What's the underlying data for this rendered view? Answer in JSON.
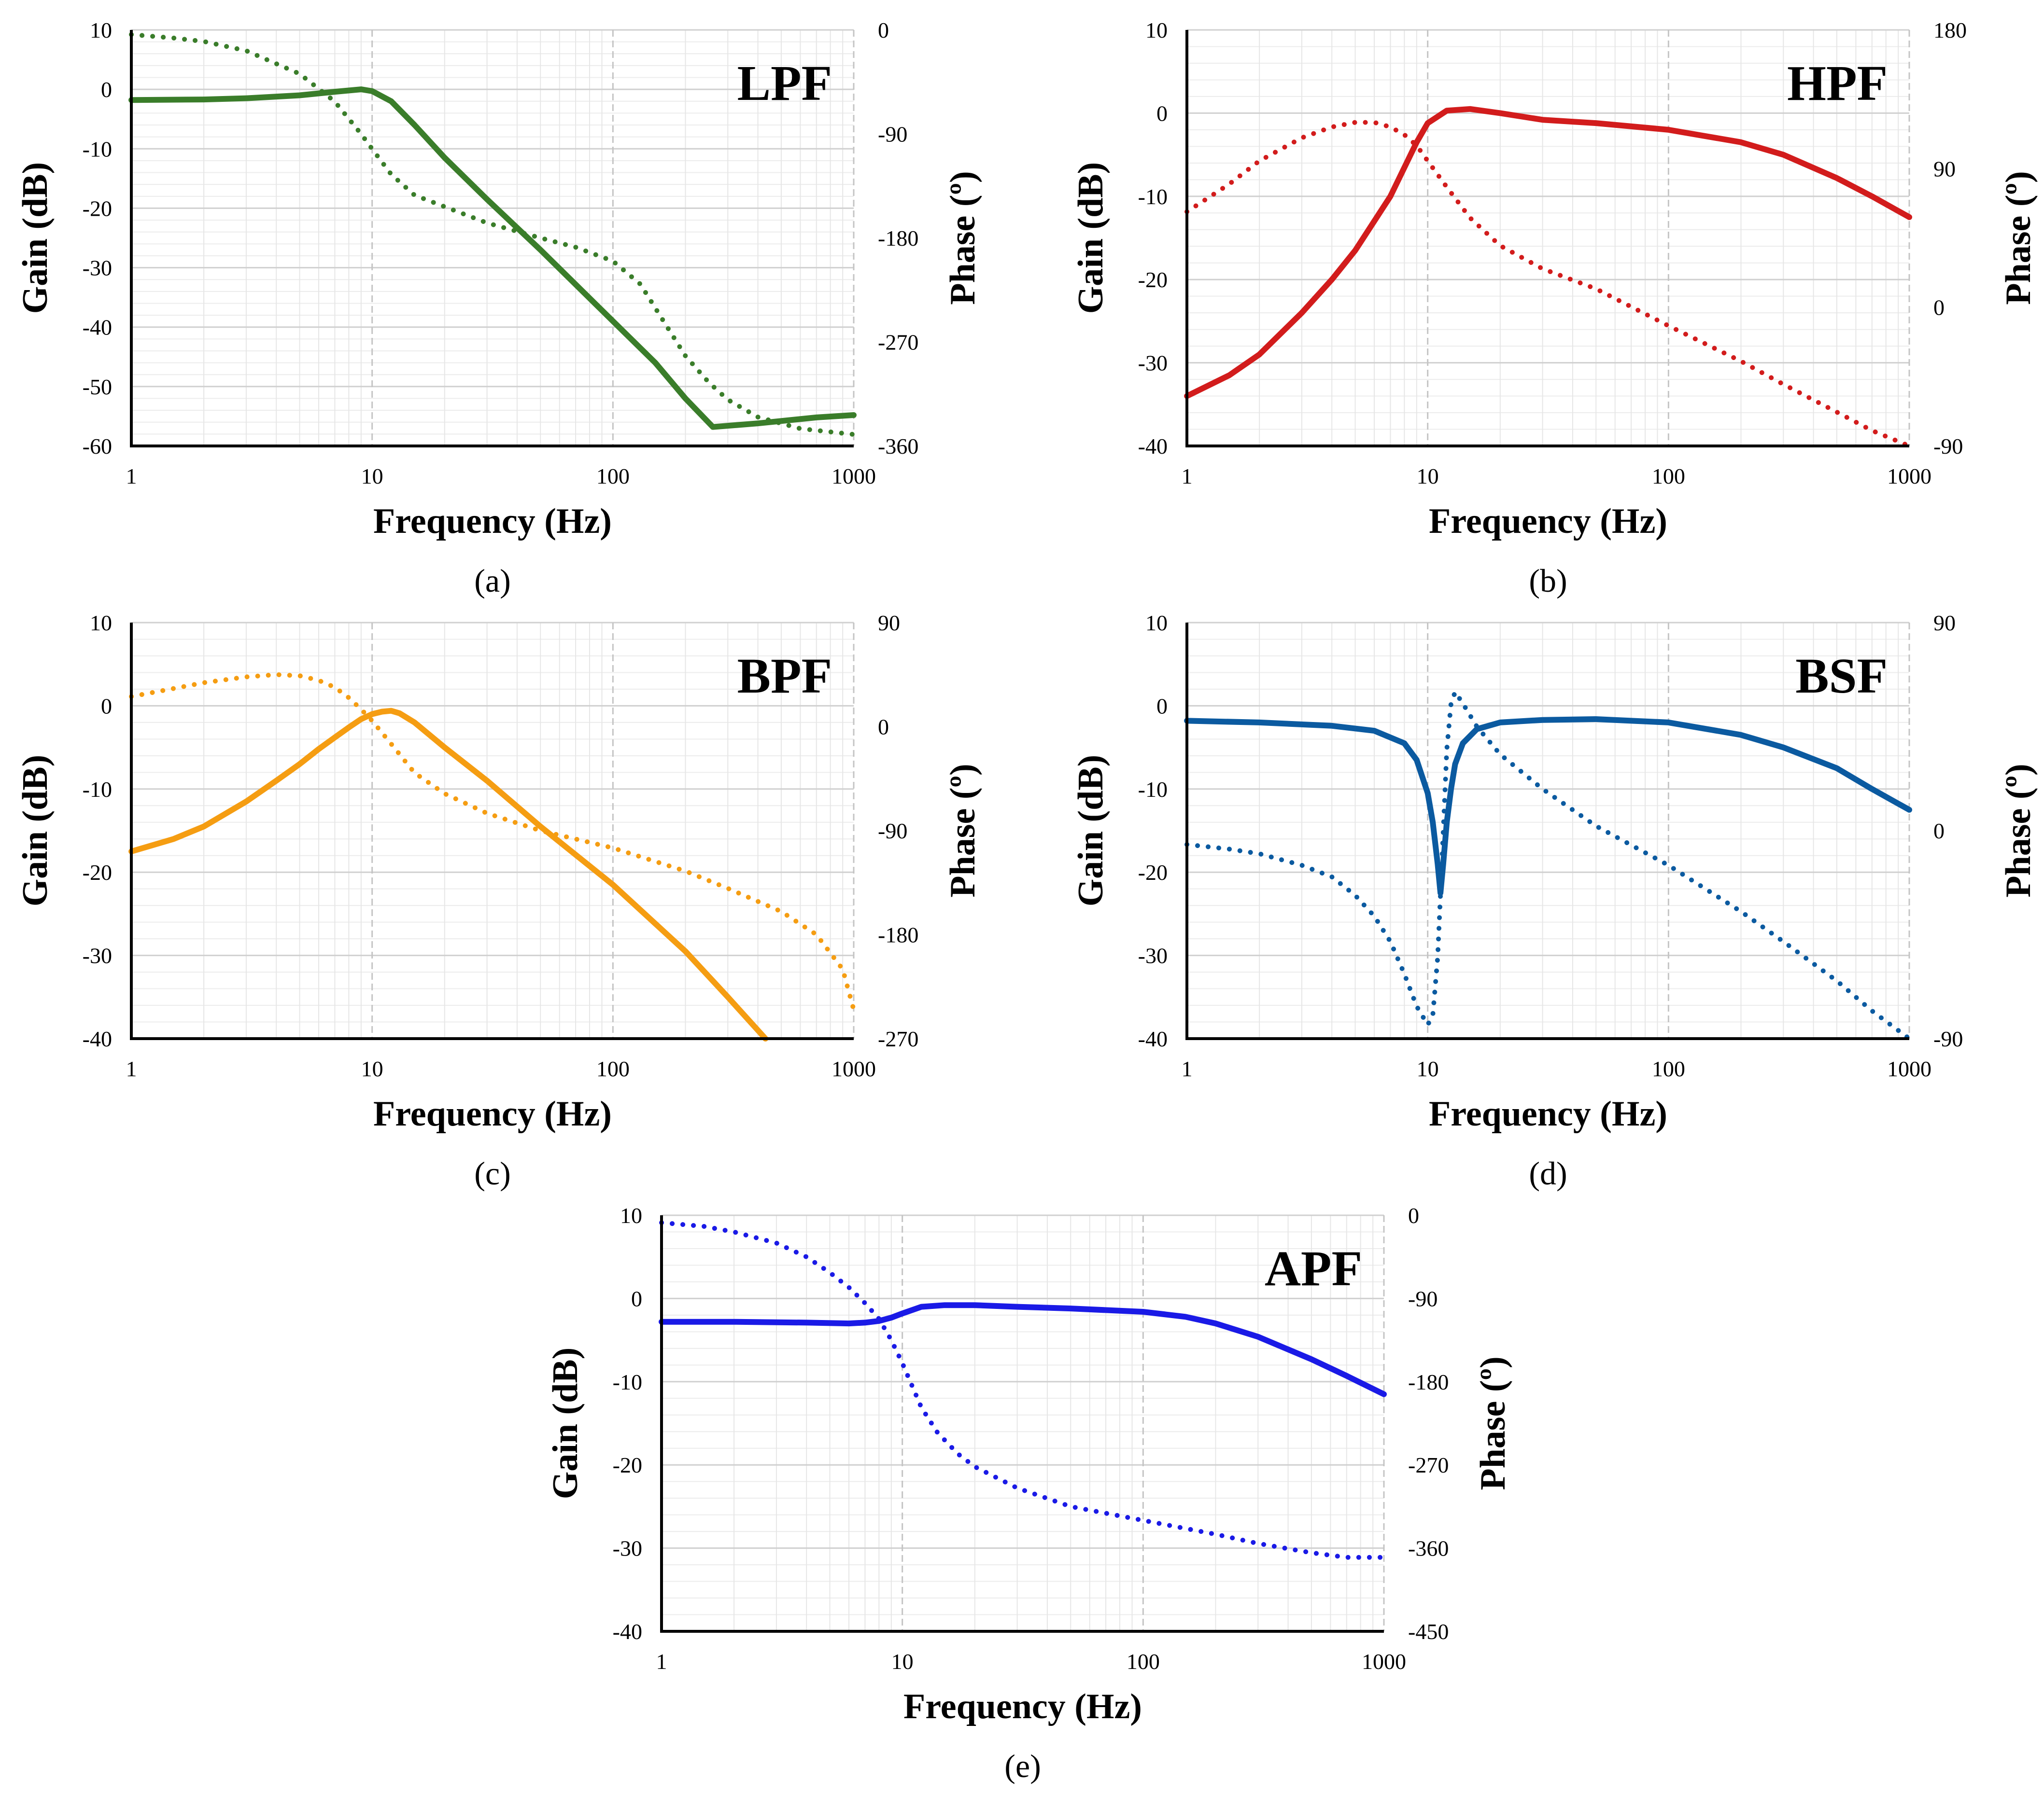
{
  "chart_data": [
    {
      "type": "line",
      "panel_label": "(a)",
      "filter_label": "LPF",
      "color": "#3a7d2a",
      "xlabel": "Frequency (Hz)",
      "ylabel": "Gain (dB)",
      "y2label": "Phase (º)",
      "xscale": "log",
      "xlim": [
        1,
        1000
      ],
      "ylim": [
        -60,
        10
      ],
      "y2lim": [
        -360,
        0
      ],
      "xticks": [
        1,
        10,
        100,
        1000
      ],
      "xtick_labels": [
        "1",
        "10",
        "100",
        "1000"
      ],
      "yticks": [
        10,
        0,
        -10,
        -20,
        -30,
        -40,
        -50,
        -60
      ],
      "ytick_labels": [
        "10",
        "0",
        "-10",
        "-20",
        "-30",
        "-40",
        "-50",
        "-60"
      ],
      "y2ticks": [
        0,
        -90,
        -180,
        -270,
        -360
      ],
      "y2tick_labels": [
        "0",
        "-90",
        "-180",
        "-270",
        "-360"
      ],
      "grid": true,
      "series": [
        {
          "name": "Gain",
          "axis": "left",
          "style": "solid",
          "x": [
            1,
            2,
            3,
            5,
            7,
            9,
            10,
            12,
            15,
            20,
            30,
            50,
            100,
            150,
            200,
            260,
            400,
            700,
            1000
          ],
          "y": [
            -1.8,
            -1.7,
            -1.5,
            -1,
            -0.4,
            0,
            -0.3,
            -2,
            -6,
            -11.5,
            -18.5,
            -27,
            -39,
            -46,
            -52,
            -56.8,
            -56.2,
            -55.2,
            -54.8
          ]
        },
        {
          "name": "Phase",
          "axis": "right",
          "style": "dotted",
          "x": [
            1,
            1.5,
            2,
            3,
            5,
            7,
            9,
            10,
            12,
            15,
            20,
            30,
            50,
            70,
            100,
            130,
            160,
            200,
            250,
            300,
            400,
            600,
            1000
          ],
          "y": [
            -4,
            -7,
            -10,
            -18,
            -38,
            -62,
            -90,
            -103,
            -125,
            -143,
            -153,
            -167,
            -180,
            -188,
            -200,
            -220,
            -250,
            -282,
            -305,
            -320,
            -335,
            -345,
            -350
          ]
        }
      ]
    },
    {
      "type": "line",
      "panel_label": "(b)",
      "filter_label": "HPF",
      "color": "#d21c1c",
      "xlabel": "Frequency (Hz)",
      "ylabel": "Gain (dB)",
      "y2label": "Phase (º)",
      "xscale": "log",
      "xlim": [
        1,
        1000
      ],
      "ylim": [
        -40,
        10
      ],
      "y2lim": [
        -90,
        180
      ],
      "xticks": [
        1,
        10,
        100,
        1000
      ],
      "xtick_labels": [
        "1",
        "10",
        "100",
        "1000"
      ],
      "yticks": [
        10,
        0,
        -10,
        -20,
        -30,
        -40
      ],
      "ytick_labels": [
        "10",
        "0",
        "-10",
        "-20",
        "-30",
        "-40"
      ],
      "y2ticks": [
        180,
        90,
        0,
        -90
      ],
      "y2tick_labels": [
        "180",
        "90",
        "0",
        "-90"
      ],
      "grid": true,
      "series": [
        {
          "name": "Gain",
          "axis": "left",
          "style": "solid",
          "x": [
            1,
            1.5,
            2,
            3,
            4,
            5,
            7,
            9,
            10,
            12,
            15,
            20,
            30,
            50,
            100,
            200,
            300,
            500,
            700,
            1000
          ],
          "y": [
            -34,
            -31.5,
            -29,
            -24,
            -20,
            -16.5,
            -10,
            -3.5,
            -1.2,
            0.3,
            0.5,
            0,
            -0.8,
            -1.2,
            -2,
            -3.5,
            -5,
            -7.8,
            -10,
            -12.5
          ]
        },
        {
          "name": "Phase",
          "axis": "right",
          "style": "dotted",
          "x": [
            1,
            1.5,
            2,
            3,
            4,
            5,
            6,
            7,
            8,
            9,
            10,
            12,
            15,
            20,
            30,
            50,
            100,
            200,
            300,
            500,
            700,
            1000
          ],
          "y": [
            62,
            80,
            95,
            110,
            117,
            120,
            120,
            117,
            112,
            105,
            95,
            78,
            58,
            40,
            25,
            12,
            -12,
            -35,
            -50,
            -68,
            -80,
            -90
          ]
        }
      ]
    },
    {
      "type": "line",
      "panel_label": "(c)",
      "filter_label": "BPF",
      "color": "#f59d12",
      "xlabel": "Frequency (Hz)",
      "ylabel": "Gain (dB)",
      "y2label": "Phase (º)",
      "xscale": "log",
      "xlim": [
        1,
        1000
      ],
      "ylim": [
        -40,
        10
      ],
      "y2lim": [
        -270,
        90
      ],
      "xticks": [
        1,
        10,
        100,
        1000
      ],
      "xtick_labels": [
        "1",
        "10",
        "100",
        "1000"
      ],
      "yticks": [
        10,
        0,
        -10,
        -20,
        -30,
        -40
      ],
      "ytick_labels": [
        "10",
        "0",
        "-10",
        "-20",
        "-30",
        "-40"
      ],
      "y2ticks": [
        90,
        0,
        -90,
        -180,
        -270
      ],
      "y2tick_labels": [
        "90",
        "0",
        "-90",
        "-180",
        "-270"
      ],
      "grid": true,
      "series": [
        {
          "name": "Gain",
          "axis": "left",
          "style": "solid",
          "x": [
            1,
            1.5,
            2,
            3,
            4,
            5,
            6,
            7,
            8,
            9,
            10,
            11,
            12,
            13,
            15,
            20,
            30,
            50,
            100,
            200,
            300,
            430
          ],
          "y": [
            -17.5,
            -16,
            -14.5,
            -11.5,
            -9,
            -7,
            -5.2,
            -3.8,
            -2.6,
            -1.6,
            -1,
            -0.7,
            -0.6,
            -0.9,
            -2,
            -5,
            -9,
            -14.5,
            -21.5,
            -29.5,
            -35,
            -40
          ]
        },
        {
          "name": "Phase",
          "axis": "right",
          "style": "dotted",
          "x": [
            1,
            1.5,
            2,
            3,
            4,
            5,
            6,
            7,
            8,
            9,
            10,
            12,
            15,
            20,
            30,
            50,
            100,
            200,
            300,
            500,
            700,
            900,
            1000
          ],
          "y": [
            26,
            33,
            38,
            43,
            45,
            44,
            40,
            34,
            25,
            15,
            5,
            -15,
            -40,
            -58,
            -75,
            -90,
            -105,
            -125,
            -140,
            -160,
            -180,
            -210,
            -245
          ]
        }
      ]
    },
    {
      "type": "line",
      "panel_label": "(d)",
      "filter_label": "BSF",
      "color": "#0b5aa0",
      "xlabel": "Frequency (Hz)",
      "ylabel": "Gain (dB)",
      "y2label": "Phase (º)",
      "xscale": "log",
      "xlim": [
        1,
        1000
      ],
      "ylim": [
        -40,
        10
      ],
      "y2lim": [
        -90,
        90
      ],
      "xticks": [
        1,
        10,
        100,
        1000
      ],
      "xtick_labels": [
        "1",
        "10",
        "100",
        "1000"
      ],
      "yticks": [
        10,
        0,
        -10,
        -20,
        -30,
        -40
      ],
      "ytick_labels": [
        "10",
        "0",
        "-10",
        "-20",
        "-30",
        "-40"
      ],
      "y2ticks": [
        90,
        0,
        -90
      ],
      "y2tick_labels": [
        "90",
        "0",
        "-90"
      ],
      "grid": true,
      "series": [
        {
          "name": "Gain",
          "axis": "left",
          "style": "solid",
          "x": [
            1,
            2,
            4,
            6,
            8,
            9,
            10,
            10.5,
            11,
            11.3,
            11.6,
            12,
            12.5,
            13,
            14,
            16,
            20,
            30,
            50,
            100,
            200,
            300,
            500,
            700,
            1000
          ],
          "y": [
            -1.8,
            -2,
            -2.4,
            -3,
            -4.5,
            -6.5,
            -10.5,
            -14,
            -19,
            -22.5,
            -19,
            -14,
            -10,
            -7,
            -4.5,
            -2.8,
            -2,
            -1.7,
            -1.6,
            -2,
            -3.5,
            -5,
            -7.5,
            -10,
            -12.5
          ]
        },
        {
          "name": "Phase",
          "axis": "right",
          "style": "dotted",
          "x": [
            1,
            1.5,
            2,
            3,
            4,
            5,
            6,
            7,
            8,
            9,
            10,
            10.5,
            11,
            11.5,
            12,
            12.5,
            13,
            14,
            16,
            20,
            30,
            50,
            100,
            200,
            300,
            500,
            700,
            1000
          ],
          "y": [
            -6,
            -8,
            -10,
            -15,
            -20,
            -28,
            -37,
            -48,
            -62,
            -76,
            -84,
            -80,
            -55,
            -10,
            35,
            55,
            60,
            55,
            45,
            33,
            18,
            2,
            -15,
            -35,
            -48,
            -65,
            -78,
            -90
          ]
        }
      ]
    },
    {
      "type": "line",
      "panel_label": "(e)",
      "filter_label": "APF",
      "color": "#1a1ae6",
      "xlabel": "Frequency (Hz)",
      "ylabel": "Gain (dB)",
      "y2label": "Phase (º)",
      "xscale": "log",
      "xlim": [
        1,
        1000
      ],
      "ylim": [
        -40,
        10
      ],
      "y2lim": [
        -450,
        0
      ],
      "xticks": [
        1,
        10,
        100,
        1000
      ],
      "xtick_labels": [
        "1",
        "10",
        "100",
        "1000"
      ],
      "yticks": [
        10,
        0,
        -10,
        -20,
        -30,
        -40
      ],
      "ytick_labels": [
        "10",
        "0",
        "-10",
        "-20",
        "-30",
        "-40"
      ],
      "y2ticks": [
        0,
        -90,
        -180,
        -270,
        -360,
        -450
      ],
      "y2tick_labels": [
        "0",
        "-90",
        "-180",
        "-270",
        "-360",
        "-450"
      ],
      "grid": true,
      "series": [
        {
          "name": "Gain",
          "axis": "left",
          "style": "solid",
          "x": [
            1,
            2,
            4,
            6,
            7,
            8,
            9,
            10,
            12,
            15,
            20,
            30,
            50,
            100,
            150,
            200,
            300,
            500,
            700,
            1000
          ],
          "y": [
            -2.8,
            -2.8,
            -2.9,
            -3,
            -2.9,
            -2.7,
            -2.3,
            -1.8,
            -1,
            -0.8,
            -0.8,
            -1,
            -1.2,
            -1.6,
            -2.2,
            -3,
            -4.6,
            -7.3,
            -9.3,
            -11.5
          ]
        },
        {
          "name": "Phase",
          "axis": "right",
          "style": "dotted",
          "x": [
            1,
            1.5,
            2,
            3,
            4,
            5,
            6,
            7,
            8,
            9,
            10,
            11,
            12,
            14,
            17,
            20,
            30,
            50,
            100,
            200,
            300,
            500,
            700,
            1000
          ],
          "y": [
            -8,
            -12,
            -18,
            -30,
            -45,
            -62,
            -78,
            -95,
            -112,
            -135,
            -160,
            -185,
            -208,
            -235,
            -258,
            -272,
            -295,
            -315,
            -330,
            -345,
            -355,
            -365,
            -370,
            -370
          ]
        }
      ]
    }
  ]
}
